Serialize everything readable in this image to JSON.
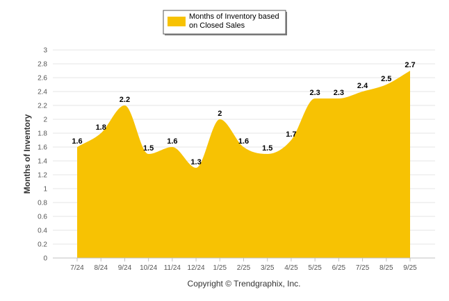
{
  "colors": {
    "area_fill": "#F7C203",
    "grid": "#E6E6E6",
    "axis": "#C0C0C0",
    "legend_border": "#555555"
  },
  "legend": {
    "line1": "Months of Inventory based",
    "line2": "on Closed Sales"
  },
  "copyright": "Copyright © Trendgraphix, Inc.",
  "chart_data": {
    "type": "area",
    "title": "",
    "xlabel": "",
    "ylabel": "Months of Inventory",
    "categories": [
      "7/24",
      "8/24",
      "9/24",
      "10/24",
      "11/24",
      "12/24",
      "1/25",
      "2/25",
      "3/25",
      "4/25",
      "5/25",
      "6/25",
      "7/25",
      "8/25",
      "9/25"
    ],
    "series": [
      {
        "name": "Months of Inventory based on Closed Sales",
        "values": [
          1.6,
          1.8,
          2.2,
          1.5,
          1.6,
          1.3,
          2,
          1.6,
          1.5,
          1.7,
          2.3,
          2.3,
          2.4,
          2.5,
          2.7
        ],
        "labels": [
          "1.6",
          "1.8",
          "2.2",
          "1.5",
          "1.6",
          "1.3",
          "2",
          "1.6",
          "1.5",
          "1.7",
          "2.3",
          "2.3",
          "2.4",
          "2.5",
          "2.7"
        ]
      }
    ],
    "ylim": [
      0,
      3
    ],
    "yticks": [
      "0",
      "0.2",
      "0.4",
      "0.6",
      "0.8",
      "1",
      "1.2",
      "1.4",
      "1.6",
      "1.8",
      "2",
      "2.2",
      "2.4",
      "2.6",
      "2.8",
      "3"
    ],
    "grid": true,
    "legend_position": "top-center"
  }
}
